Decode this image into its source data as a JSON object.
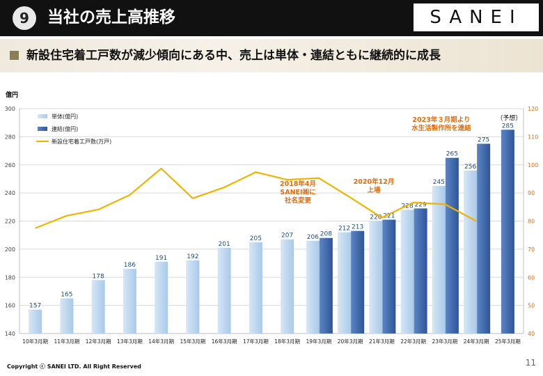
{
  "header": {
    "badge": "9",
    "title": "当社の売上高推移",
    "logo": "SANEI"
  },
  "banner": {
    "text": "新設住宅着工戸数が減少傾向にある中、売上は単体・連結ともに継続的に成長"
  },
  "footer": {
    "copyright": "Copyright ⓒ SANEI LTD. All Right Reserved",
    "page": "11"
  },
  "colors": {
    "single": "#a9c9ea",
    "consolidated": "#2f5597",
    "line": "#f0b400",
    "annotation": "#e46c0a"
  },
  "chart_data": {
    "type": "bar",
    "y_unit_label": "億円",
    "categories": [
      "10年3月期",
      "11年3月期",
      "12年3月期",
      "13年3月期",
      "14年3月期",
      "15年3月期",
      "16年3月期",
      "17年3月期",
      "18年3月期",
      "19年3月期",
      "20年3月期",
      "21年3月期",
      "22年3月期",
      "23年3月期",
      "24年3月期",
      "25年3月期"
    ],
    "series": [
      {
        "name": "単体(億円)",
        "axis": "left",
        "kind": "bar",
        "values": [
          157,
          165,
          178,
          186,
          191,
          192,
          201,
          205,
          207,
          206,
          212,
          220,
          228,
          245,
          256,
          null
        ]
      },
      {
        "name": "連結(億円)",
        "axis": "left",
        "kind": "bar",
        "values": [
          null,
          null,
          null,
          null,
          null,
          null,
          null,
          null,
          null,
          208,
          213,
          221,
          229,
          265,
          275,
          285
        ]
      },
      {
        "name": "新設住宅着工戸数(万戸)",
        "axis": "right",
        "kind": "line",
        "values": [
          77.5,
          81.9,
          84.1,
          89.3,
          98.7,
          88.1,
          92.0,
          97.4,
          94.7,
          95.3,
          88.4,
          81.2,
          86.6,
          86.0,
          80.0,
          null
        ]
      }
    ],
    "ylim": [
      140,
      300
    ],
    "yticks": [
      140,
      160,
      180,
      200,
      220,
      240,
      260,
      280,
      300
    ],
    "y2lim": [
      40,
      120
    ],
    "y2ticks": [
      40,
      50,
      60,
      70,
      80,
      90,
      100,
      110,
      120
    ],
    "forecast_label": "（予想）",
    "annotations": [
      {
        "id": "ann-2018",
        "lines": [
          "2018年4月",
          "SANEI㈱に",
          "社名変更"
        ],
        "category_index": 9
      },
      {
        "id": "ann-2020",
        "lines": [
          "2020年12月",
          "上場"
        ],
        "category_index": 11
      },
      {
        "id": "ann-2023",
        "lines": [
          "2023年３月期より",
          "水生活製作所を連結"
        ],
        "category_index": 13
      }
    ]
  }
}
